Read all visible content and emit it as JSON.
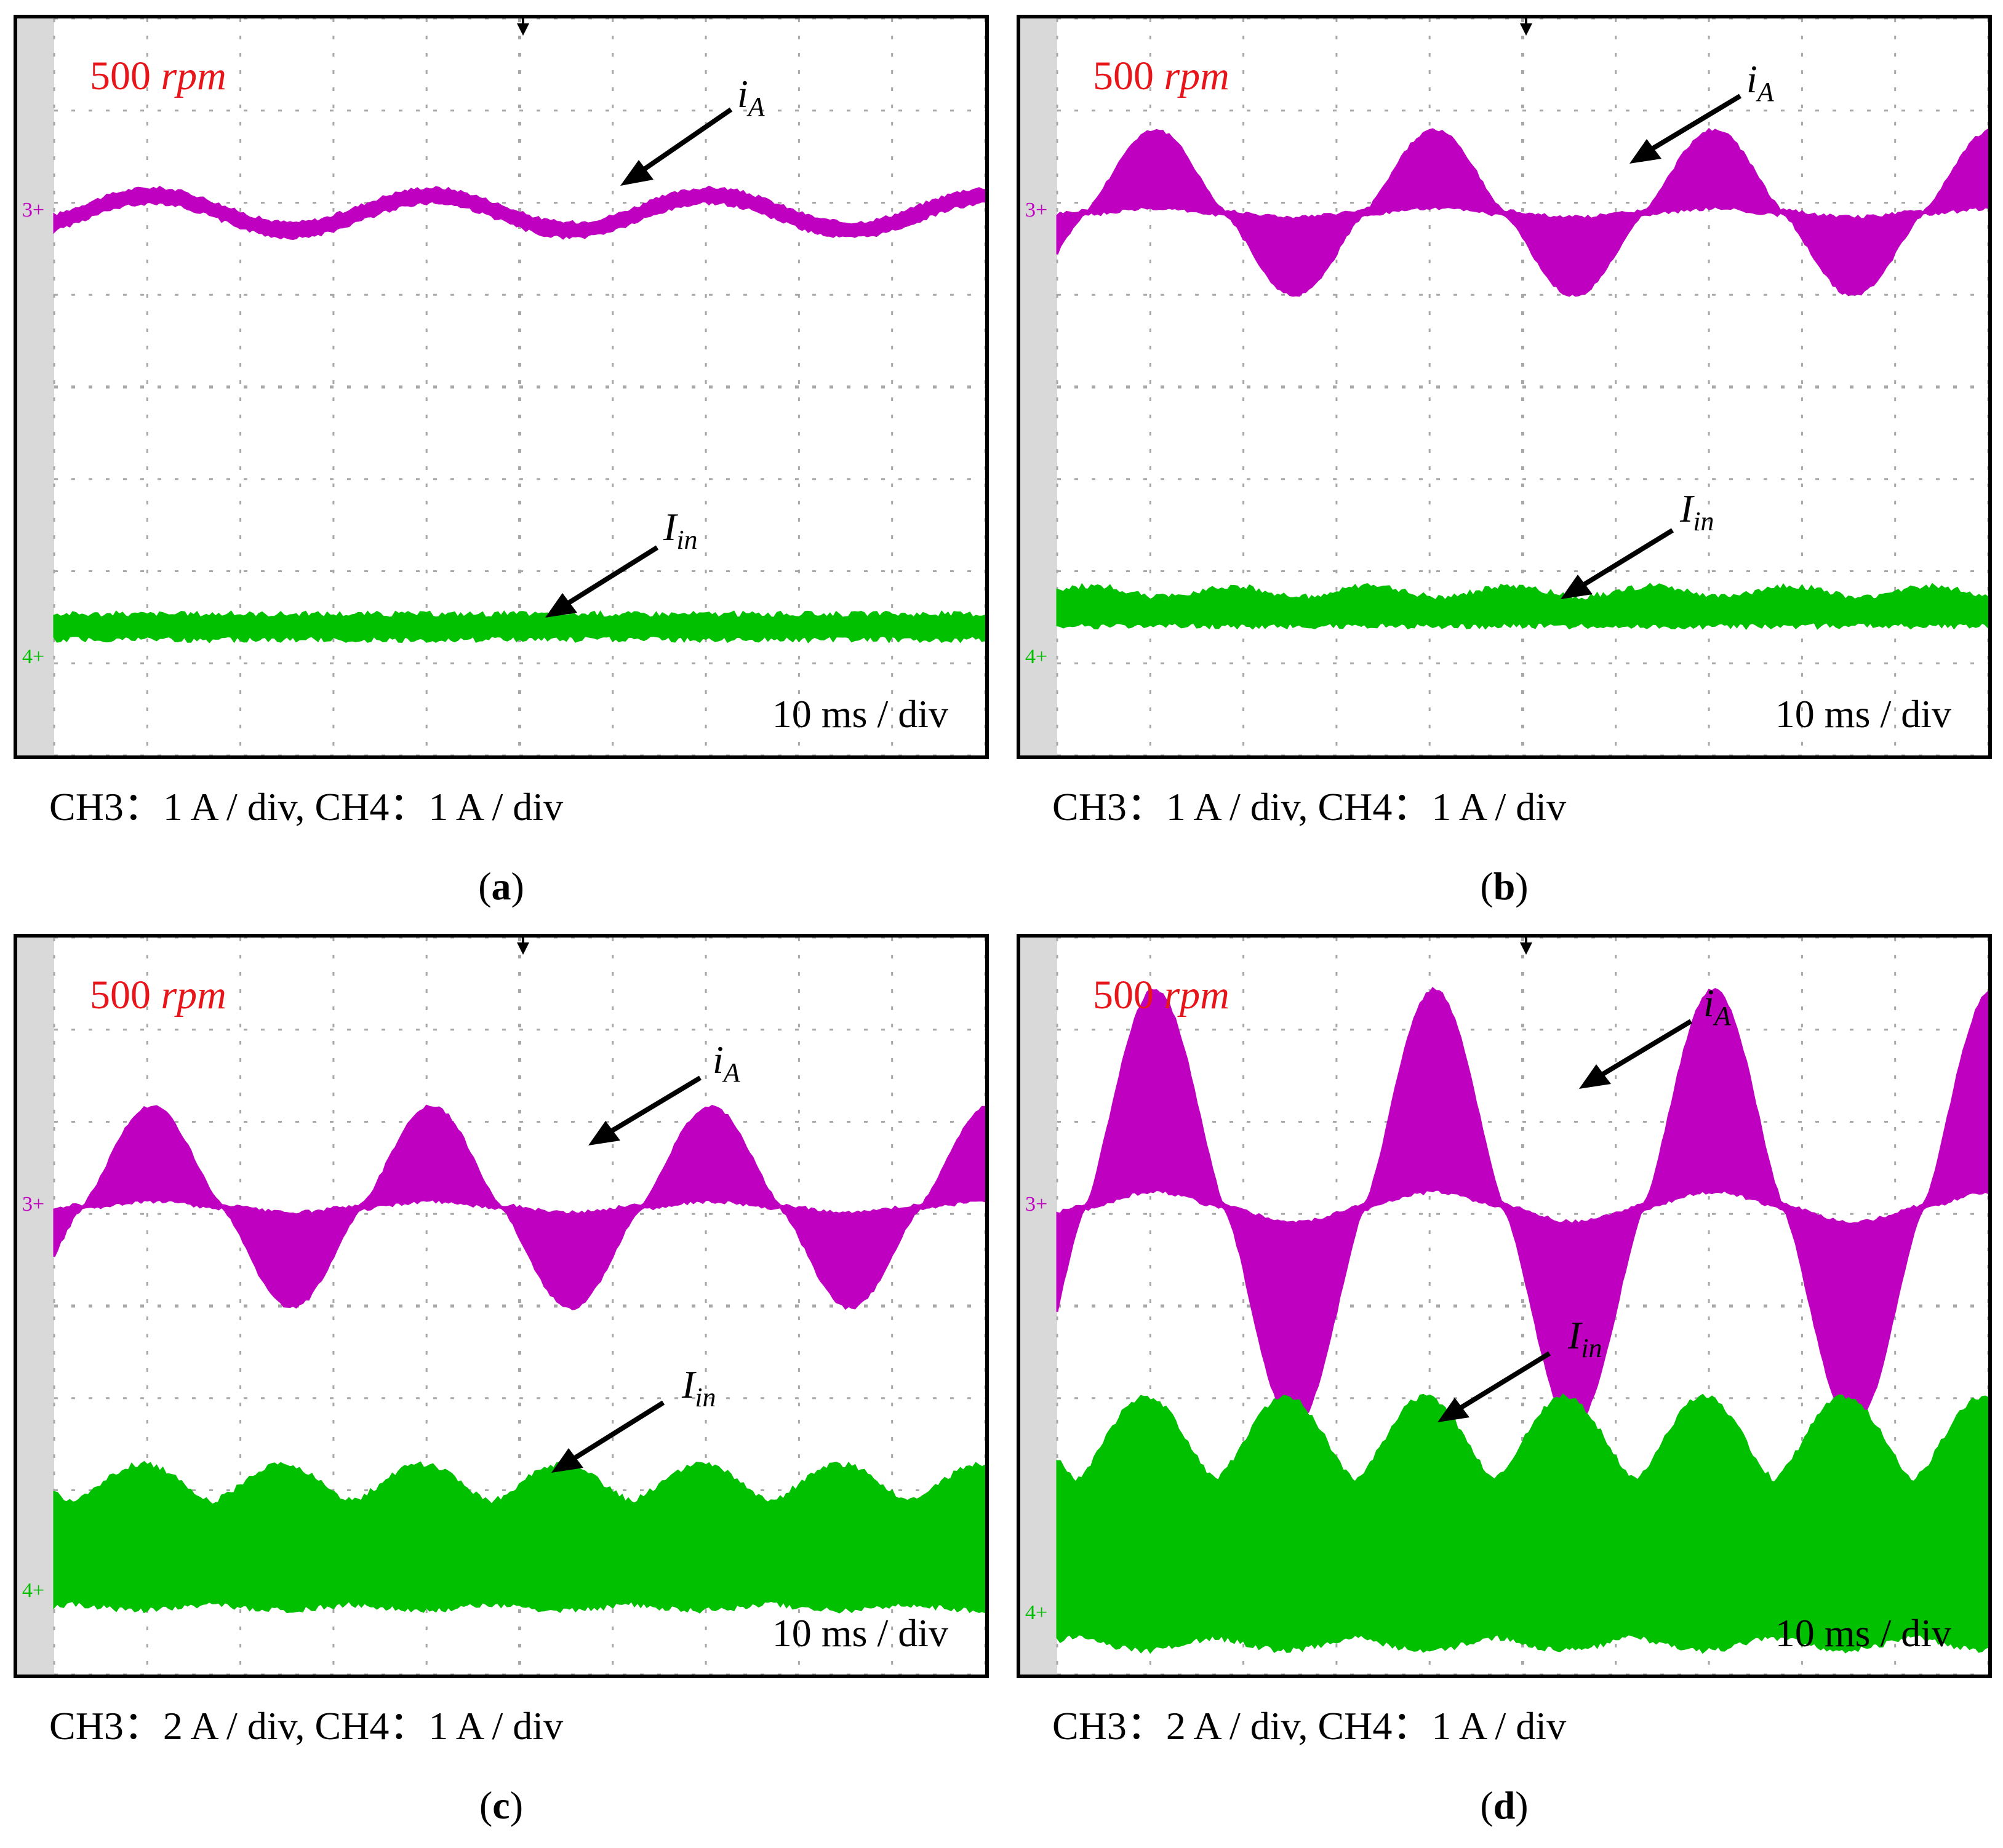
{
  "colors": {
    "iA": "#c000c0",
    "Iin": "#00c000",
    "grid": "#a8a8a8",
    "rpm": "#e8161b"
  },
  "panels": [
    {
      "id": "a",
      "letter": "a",
      "speed": "500",
      "speed_unit": "rpm",
      "timebase": "10 ms / div",
      "scale_caption": "CH3：1 A / div, CH4：1 A / div",
      "labels": {
        "iA_main": "i",
        "iA_sub": "A",
        "Iin_main": "I",
        "Iin_sub": "in"
      }
    },
    {
      "id": "b",
      "letter": "b",
      "speed": "500",
      "speed_unit": "rpm",
      "timebase": "10 ms / div",
      "scale_caption": "CH3：1 A / div, CH4：1 A / div",
      "labels": {
        "iA_main": "i",
        "iA_sub": "A",
        "Iin_main": "I",
        "Iin_sub": "in"
      }
    },
    {
      "id": "c",
      "letter": "c",
      "speed": "500",
      "speed_unit": "rpm",
      "timebase": "10 ms / div",
      "scale_caption": "CH3：2 A / div, CH4：1 A / div",
      "labels": {
        "iA_main": "i",
        "iA_sub": "A",
        "Iin_main": "I",
        "Iin_sub": "in"
      }
    },
    {
      "id": "d",
      "letter": "d",
      "speed": "500",
      "speed_unit": "rpm",
      "timebase": "10 ms / div",
      "scale_caption": "CH3：2 A / div, CH4：1 A / div",
      "labels": {
        "iA_main": "i",
        "iA_sub": "A",
        "Iin_main": "I",
        "Iin_sub": "in"
      }
    }
  ],
  "chart_data": [
    {
      "type": "line",
      "title": "(a)",
      "x_unit": "ms",
      "x_range": [
        0,
        100
      ],
      "x_div": 10,
      "series": [
        {
          "name": "iA (CH3, 1 A/div)",
          "channel": "3",
          "amplitude_A": 0.35,
          "period_ms": 30,
          "envelope": "thin sinusoid"
        },
        {
          "name": "Iin (CH4, 1 A/div)",
          "channel": "4",
          "mean_A": 0.35,
          "ripple_A": 0.2,
          "envelope": "flat band"
        }
      ]
    },
    {
      "type": "line",
      "title": "(b)",
      "x_unit": "ms",
      "x_range": [
        0,
        100
      ],
      "x_div": 10,
      "series": [
        {
          "name": "iA (CH3, 1 A/div)",
          "channel": "3",
          "amplitude_A": 0.9,
          "period_ms": 30,
          "envelope": "chopped pulses"
        },
        {
          "name": "Iin (CH4, 1 A/div)",
          "channel": "4",
          "mean_A": 0.55,
          "ripple_A": 0.3,
          "envelope": "band"
        }
      ]
    },
    {
      "type": "line",
      "title": "(c)",
      "x_unit": "ms",
      "x_range": [
        0,
        100
      ],
      "x_div": 10,
      "series": [
        {
          "name": "iA (CH3, 2 A/div)",
          "channel": "3",
          "amplitude_A": 2.2,
          "period_ms": 30,
          "envelope": "chopped pulses"
        },
        {
          "name": "Iin (CH4, 1 A/div)",
          "channel": "4",
          "mean_A": 0.9,
          "ripple_A": 0.8,
          "envelope": "humps"
        }
      ]
    },
    {
      "type": "line",
      "title": "(d)",
      "x_unit": "ms",
      "x_range": [
        0,
        100
      ],
      "x_div": 10,
      "series": [
        {
          "name": "iA (CH3, 2 A/div)",
          "channel": "3",
          "amplitude_A": 4.8,
          "period_ms": 30,
          "envelope": "chopped pulses"
        },
        {
          "name": "Iin (CH4, 1 A/div)",
          "channel": "4",
          "mean_A": 1.3,
          "ripple_A": 1.8,
          "envelope": "humps"
        }
      ]
    }
  ]
}
